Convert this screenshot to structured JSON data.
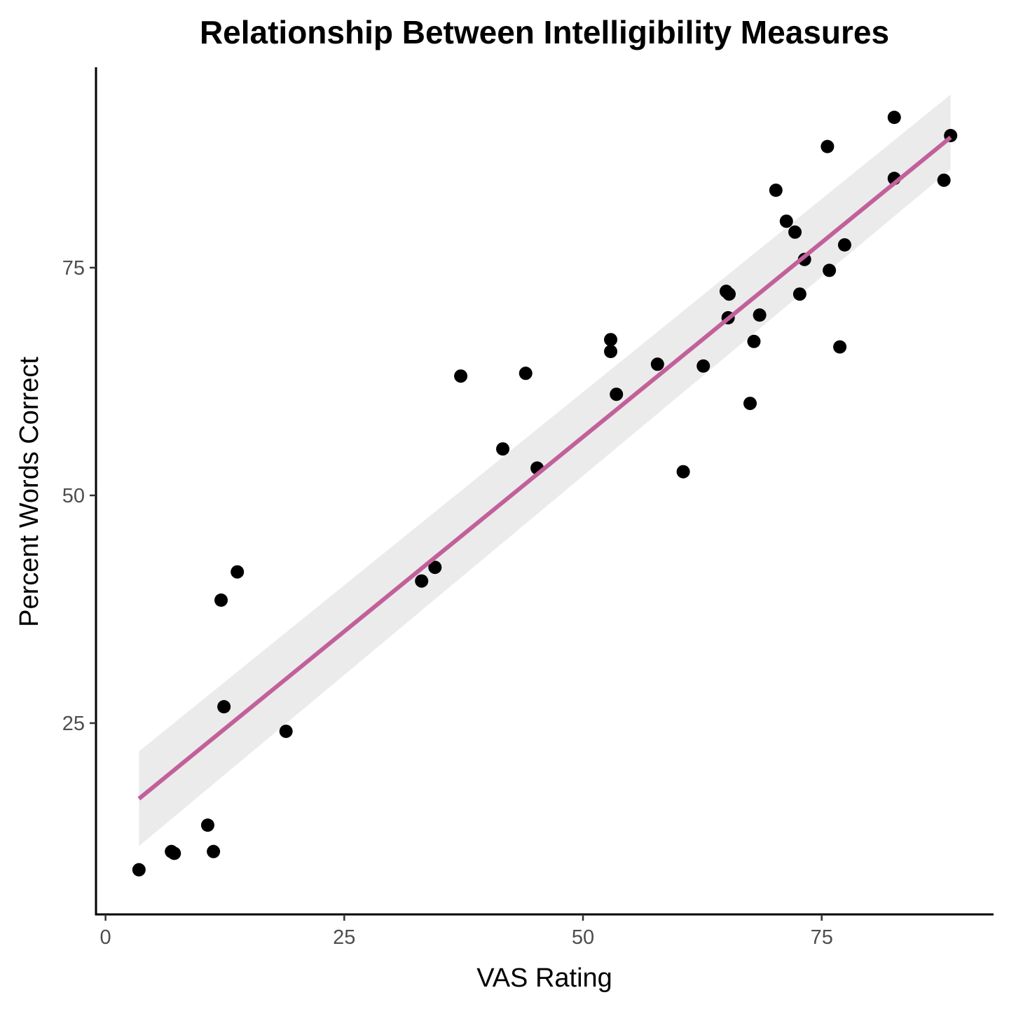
{
  "chart_data": {
    "type": "scatter",
    "title": "Relationship Between Intelligibility Measures",
    "xlabel": "VAS Rating",
    "ylabel": "Percent Words Correct",
    "xlim": [
      -1,
      93
    ],
    "ylim": [
      4,
      97
    ],
    "xticks": [
      0,
      25,
      50,
      75
    ],
    "yticks": [
      25,
      50,
      75
    ],
    "grid": false,
    "legend": "none",
    "point_color": "#000000",
    "line_color": "#C2609A",
    "band_color": "#EBEBEB",
    "points": [
      {
        "x": 3.5,
        "y": 8.9
      },
      {
        "x": 6.9,
        "y": 10.9
      },
      {
        "x": 7.2,
        "y": 10.7
      },
      {
        "x": 10.7,
        "y": 13.8
      },
      {
        "x": 11.3,
        "y": 10.9
      },
      {
        "x": 12.1,
        "y": 38.5
      },
      {
        "x": 12.4,
        "y": 26.8
      },
      {
        "x": 13.8,
        "y": 41.6
      },
      {
        "x": 18.9,
        "y": 24.1
      },
      {
        "x": 33.1,
        "y": 40.6
      },
      {
        "x": 34.5,
        "y": 42.1
      },
      {
        "x": 37.2,
        "y": 63.1
      },
      {
        "x": 41.6,
        "y": 55.1
      },
      {
        "x": 44.0,
        "y": 63.4
      },
      {
        "x": 45.2,
        "y": 53.0
      },
      {
        "x": 52.9,
        "y": 67.1
      },
      {
        "x": 52.9,
        "y": 65.8
      },
      {
        "x": 53.5,
        "y": 61.1
      },
      {
        "x": 57.8,
        "y": 64.4
      },
      {
        "x": 60.5,
        "y": 52.6
      },
      {
        "x": 62.6,
        "y": 64.2
      },
      {
        "x": 65.0,
        "y": 72.4
      },
      {
        "x": 65.3,
        "y": 72.1
      },
      {
        "x": 65.2,
        "y": 69.5
      },
      {
        "x": 67.5,
        "y": 60.1
      },
      {
        "x": 67.9,
        "y": 66.9
      },
      {
        "x": 68.5,
        "y": 69.8
      },
      {
        "x": 70.2,
        "y": 83.5
      },
      {
        "x": 71.3,
        "y": 80.1
      },
      {
        "x": 72.2,
        "y": 78.9
      },
      {
        "x": 72.7,
        "y": 72.1
      },
      {
        "x": 73.2,
        "y": 75.9
      },
      {
        "x": 75.6,
        "y": 88.3
      },
      {
        "x": 75.8,
        "y": 74.7
      },
      {
        "x": 76.9,
        "y": 66.3
      },
      {
        "x": 77.4,
        "y": 77.5
      },
      {
        "x": 82.6,
        "y": 91.5
      },
      {
        "x": 82.6,
        "y": 84.8
      },
      {
        "x": 87.8,
        "y": 84.6
      },
      {
        "x": 88.5,
        "y": 89.5
      }
    ],
    "fit": {
      "x": [
        3.5,
        88.5
      ],
      "y": [
        16.7,
        89.3
      ],
      "ci_lower": [
        11.5,
        85.8
      ],
      "ci_upper": [
        21.9,
        94.0
      ]
    }
  }
}
